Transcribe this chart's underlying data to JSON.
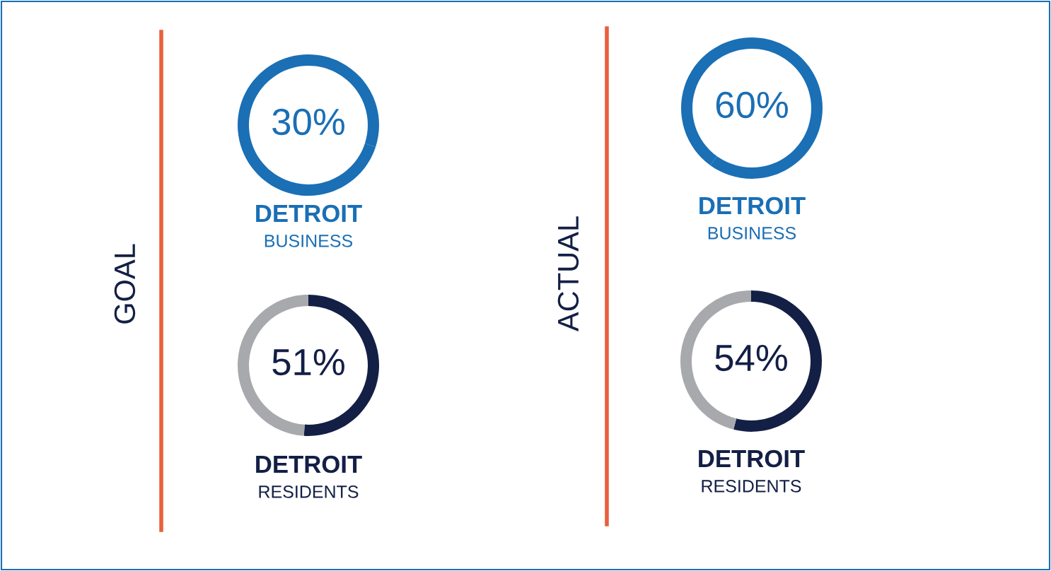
{
  "chart_data": [
    {
      "type": "donut",
      "title": "DETROIT",
      "subtitle": "BUSINESS",
      "annotations": [
        "GOAL"
      ],
      "categories": [
        null,
        null
      ],
      "values": [
        30,
        70
      ],
      "colors": [
        "#1a6fb5",
        "#1a6fb5"
      ],
      "value_labels": [
        "30%",
        null
      ]
    },
    {
      "type": "donut",
      "title": "DETROIT",
      "subtitle": "RESIDENTS",
      "categories": [
        null,
        null
      ],
      "values": [
        51,
        49
      ],
      "colors": [
        "#131f45",
        "#a7a9ac"
      ],
      "value_labels": [
        "51%",
        null
      ]
    },
    {
      "type": "donut",
      "title": "DETROIT",
      "subtitle": "BUSINESS",
      "annotations": [
        "ACTUAL"
      ],
      "categories": [
        null,
        null
      ],
      "values": [
        60,
        40
      ],
      "colors": [
        "#1a6fb5",
        "#1a6fb5"
      ],
      "value_labels": [
        "60%",
        null
      ]
    },
    {
      "type": "donut",
      "title": "DETROIT",
      "subtitle": "RESIDENTS",
      "categories": [
        null,
        null
      ],
      "values": [
        54,
        46
      ],
      "colors": [
        "#131f45",
        "#a7a9ac"
      ],
      "value_labels": [
        "54%",
        null
      ]
    }
  ]
}
